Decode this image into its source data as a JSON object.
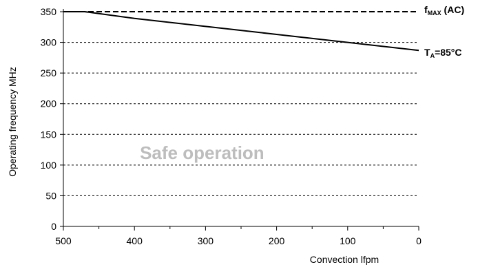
{
  "chart_data": {
    "type": "line",
    "xlabel": "Convection lfpm",
    "ylabel": "Operating frequency MHz",
    "xlim": [
      500,
      0
    ],
    "ylim": [
      0,
      350
    ],
    "x_reversed": true,
    "x_ticks": [
      500,
      400,
      300,
      200,
      100,
      0
    ],
    "y_ticks": [
      0,
      50,
      100,
      150,
      200,
      250,
      300,
      350
    ],
    "grid": "horizontal dashed",
    "series": [
      {
        "label_main": "T",
        "label_sub": "A",
        "label_rest": "=85°C",
        "style": "solid",
        "color": "#000000",
        "x": [
          500,
          470,
          400,
          300,
          200,
          100,
          0
        ],
        "y": [
          350,
          350,
          339,
          326,
          313,
          300,
          287
        ]
      },
      {
        "label_main": "f",
        "label_sub": "MAX",
        "label_rest": " (AC)",
        "style": "dashed",
        "color": "#000000",
        "x": [
          500,
          0
        ],
        "y": [
          350,
          350
        ]
      }
    ],
    "annotations": [
      {
        "text": "Safe operation",
        "x": 300,
        "y": 120
      }
    ]
  }
}
